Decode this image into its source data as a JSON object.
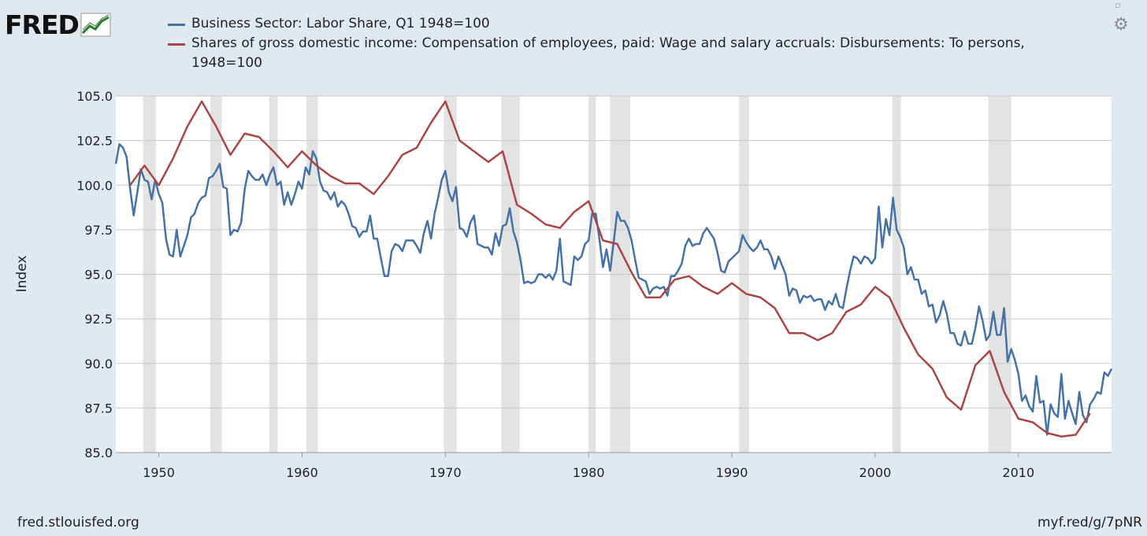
{
  "logo": {
    "text": "FRED",
    "icon": "line-chart-icon"
  },
  "colors": {
    "series1": "#4572a7",
    "series2": "#aa4643",
    "recession": "#e3e3e3",
    "grid": "#c8c8c8",
    "background": "#e1e9f0"
  },
  "footer": {
    "source": "fred.stlouisfed.org",
    "short_url": "myf.red/g/7pNR"
  },
  "chart_data": {
    "type": "line",
    "title": "",
    "ylabel": "Index",
    "xlabel": "",
    "xlim": [
      1947.0,
      2016.5
    ],
    "ylim": [
      85.0,
      105.0
    ],
    "xticks": [
      1950,
      1960,
      1970,
      1980,
      1990,
      2000,
      2010
    ],
    "yticks": [
      85.0,
      87.5,
      90.0,
      92.5,
      95.0,
      97.5,
      100.0,
      102.5,
      105.0
    ],
    "ytick_labels": [
      "85.0",
      "87.5",
      "90.0",
      "92.5",
      "95.0",
      "97.5",
      "100.0",
      "102.5",
      "105.0"
    ],
    "legend": "top",
    "recessions": [
      [
        1948.9,
        1949.8
      ],
      [
        1953.6,
        1954.4
      ],
      [
        1957.7,
        1958.3
      ],
      [
        1960.3,
        1961.1
      ],
      [
        1969.9,
        1970.8
      ],
      [
        1973.9,
        1975.2
      ],
      [
        1980.0,
        1980.5
      ],
      [
        1981.5,
        1982.9
      ],
      [
        1990.5,
        1991.2
      ],
      [
        2001.2,
        2001.8
      ],
      [
        2007.9,
        2009.5
      ]
    ],
    "series": [
      {
        "name": "Business Sector: Labor Share, Q1 1948=100",
        "x": [
          1947.0,
          1947.25,
          1947.5,
          1947.75,
          1948.0,
          1948.25,
          1948.5,
          1948.75,
          1949.0,
          1949.25,
          1949.5,
          1949.75,
          1950.0,
          1950.25,
          1950.5,
          1950.75,
          1951.0,
          1951.25,
          1951.5,
          1951.75,
          1952.0,
          1952.25,
          1952.5,
          1952.75,
          1953.0,
          1953.25,
          1953.5,
          1953.75,
          1954.0,
          1954.25,
          1954.5,
          1954.75,
          1955.0,
          1955.25,
          1955.5,
          1955.75,
          1956.0,
          1956.25,
          1956.5,
          1956.75,
          1957.0,
          1957.25,
          1957.5,
          1957.75,
          1958.0,
          1958.25,
          1958.5,
          1958.75,
          1959.0,
          1959.25,
          1959.5,
          1959.75,
          1960.0,
          1960.25,
          1960.5,
          1960.75,
          1961.0,
          1961.25,
          1961.5,
          1961.75,
          1962.0,
          1962.25,
          1962.5,
          1962.75,
          1963.0,
          1963.25,
          1963.5,
          1963.75,
          1964.0,
          1964.25,
          1964.5,
          1964.75,
          1965.0,
          1965.25,
          1965.5,
          1965.75,
          1966.0,
          1966.25,
          1966.5,
          1966.75,
          1967.0,
          1967.25,
          1967.5,
          1967.75,
          1968.0,
          1968.25,
          1968.5,
          1968.75,
          1969.0,
          1969.25,
          1969.5,
          1969.75,
          1970.0,
          1970.25,
          1970.5,
          1970.75,
          1971.0,
          1971.25,
          1971.5,
          1971.75,
          1972.0,
          1972.25,
          1972.5,
          1972.75,
          1973.0,
          1973.25,
          1973.5,
          1973.75,
          1974.0,
          1974.25,
          1974.5,
          1974.75,
          1975.0,
          1975.25,
          1975.5,
          1975.75,
          1976.0,
          1976.25,
          1976.5,
          1976.75,
          1977.0,
          1977.25,
          1977.5,
          1977.75,
          1978.0,
          1978.25,
          1978.5,
          1978.75,
          1979.0,
          1979.25,
          1979.5,
          1979.75,
          1980.0,
          1980.25,
          1980.5,
          1980.75,
          1981.0,
          1981.25,
          1981.5,
          1981.75,
          1982.0,
          1982.25,
          1982.5,
          1982.75,
          1983.0,
          1983.25,
          1983.5,
          1983.75,
          1984.0,
          1984.25,
          1984.5,
          1984.75,
          1985.0,
          1985.25,
          1985.5,
          1985.75,
          1986.0,
          1986.25,
          1986.5,
          1986.75,
          1987.0,
          1987.25,
          1987.5,
          1987.75,
          1988.0,
          1988.25,
          1988.5,
          1988.75,
          1989.0,
          1989.25,
          1989.5,
          1989.75,
          1990.0,
          1990.25,
          1990.5,
          1990.75,
          1991.0,
          1991.25,
          1991.5,
          1991.75,
          1992.0,
          1992.25,
          1992.5,
          1992.75,
          1993.0,
          1993.25,
          1993.5,
          1993.75,
          1994.0,
          1994.25,
          1994.5,
          1994.75,
          1995.0,
          1995.25,
          1995.5,
          1995.75,
          1996.0,
          1996.25,
          1996.5,
          1996.75,
          1997.0,
          1997.25,
          1997.5,
          1997.75,
          1998.0,
          1998.25,
          1998.5,
          1998.75,
          1999.0,
          1999.25,
          1999.5,
          1999.75,
          2000.0,
          2000.25,
          2000.5,
          2000.75,
          2001.0,
          2001.25,
          2001.5,
          2001.75,
          2002.0,
          2002.25,
          2002.5,
          2002.75,
          2003.0,
          2003.25,
          2003.5,
          2003.75,
          2004.0,
          2004.25,
          2004.5,
          2004.75,
          2005.0,
          2005.25,
          2005.5,
          2005.75,
          2006.0,
          2006.25,
          2006.5,
          2006.75,
          2007.0,
          2007.25,
          2007.5,
          2007.75,
          2008.0,
          2008.25,
          2008.5,
          2008.75,
          2009.0,
          2009.25,
          2009.5,
          2009.75,
          2010.0,
          2010.25,
          2010.5,
          2010.75,
          2011.0,
          2011.25,
          2011.5,
          2011.75,
          2012.0,
          2012.25,
          2012.5,
          2012.75,
          2013.0,
          2013.25,
          2013.5,
          2013.75,
          2014.0,
          2014.25,
          2014.5,
          2014.75,
          2015.0,
          2015.25,
          2015.5,
          2015.75,
          2016.0,
          2016.25,
          2016.5
        ],
        "values": [
          101.2,
          102.3,
          102.1,
          101.6,
          99.8,
          98.3,
          99.6,
          100.9,
          100.3,
          100.2,
          99.2,
          100.3,
          99.5,
          99.0,
          97.0,
          96.1,
          96.0,
          97.5,
          96.0,
          96.6,
          97.2,
          98.2,
          98.4,
          99.0,
          99.3,
          99.4,
          100.4,
          100.5,
          100.8,
          101.2,
          99.9,
          99.8,
          97.2,
          97.5,
          97.4,
          97.9,
          99.8,
          100.8,
          100.5,
          100.3,
          100.3,
          100.6,
          100.0,
          100.6,
          101.0,
          100.0,
          100.2,
          98.9,
          99.6,
          98.9,
          99.5,
          100.2,
          99.8,
          101.0,
          100.6,
          101.9,
          101.5,
          100.2,
          99.7,
          99.6,
          99.2,
          99.6,
          98.8,
          99.1,
          98.9,
          98.4,
          97.7,
          97.6,
          97.1,
          97.4,
          97.4,
          98.3,
          97.0,
          97.0,
          95.9,
          94.9,
          94.9,
          96.3,
          96.7,
          96.6,
          96.3,
          96.9,
          96.9,
          96.9,
          96.6,
          96.2,
          97.3,
          98.0,
          97.0,
          98.4,
          99.3,
          100.3,
          100.8,
          99.6,
          99.1,
          99.9,
          97.6,
          97.5,
          97.1,
          97.9,
          98.3,
          96.7,
          96.6,
          96.5,
          96.5,
          96.1,
          97.3,
          96.6,
          97.7,
          97.8,
          98.7,
          97.4,
          96.8,
          95.8,
          94.5,
          94.6,
          94.5,
          94.6,
          95.0,
          95.0,
          94.8,
          95.0,
          94.7,
          95.2,
          97.0,
          94.6,
          94.5,
          94.4,
          96.0,
          95.8,
          96.0,
          96.7,
          96.9,
          98.4,
          98.4,
          97.0,
          95.4,
          96.4,
          95.2,
          96.8,
          98.5,
          98.0,
          98.0,
          97.6,
          96.9,
          95.8,
          94.8,
          94.7,
          94.6,
          93.9,
          94.2,
          94.3,
          94.2,
          94.3,
          93.8,
          94.9,
          94.9,
          95.2,
          95.6,
          96.6,
          97.0,
          96.6,
          96.7,
          96.7,
          97.3,
          97.6,
          97.3,
          97.0,
          96.2,
          95.2,
          95.1,
          95.7,
          95.9,
          96.1,
          96.3,
          97.2,
          96.8,
          96.5,
          96.3,
          96.5,
          96.9,
          96.4,
          96.4,
          96.0,
          95.3,
          96.0,
          95.5,
          95.0,
          93.8,
          94.2,
          94.1,
          93.4,
          93.8,
          93.7,
          93.8,
          93.5,
          93.6,
          93.6,
          93.0,
          93.5,
          93.3,
          93.9,
          93.2,
          93.1,
          94.2,
          95.2,
          96.0,
          95.9,
          95.6,
          96.0,
          95.9,
          95.6,
          95.9,
          98.8,
          96.5,
          98.1,
          97.2,
          99.3,
          97.5,
          97.1,
          96.5,
          95.0,
          95.4,
          94.7,
          94.7,
          93.9,
          94.1,
          93.2,
          93.3,
          92.3,
          92.7,
          93.5,
          92.8,
          91.7,
          91.7,
          91.1,
          91.0,
          91.8,
          91.1,
          91.1,
          92.0,
          93.2,
          92.4,
          91.3,
          91.6,
          92.9,
          91.6,
          91.6,
          93.1,
          90.1,
          90.8,
          90.2,
          89.4,
          87.9,
          88.2,
          87.6,
          87.3,
          89.3,
          87.8,
          87.9,
          86.0,
          87.7,
          87.2,
          87.0,
          89.4,
          86.9,
          87.9,
          87.2,
          86.6,
          88.4,
          87.1,
          86.7,
          87.7,
          88.0,
          88.4,
          88.3,
          89.5,
          89.3,
          89.7
        ]
      },
      {
        "name": "Shares of gross domestic income: Compensation of employees, paid: Wage and salary accruals: Disbursements: To persons, 1948=100",
        "x": [
          1948,
          1949,
          1950,
          1951,
          1952,
          1953,
          1954,
          1955,
          1956,
          1957,
          1958,
          1959,
          1960,
          1961,
          1962,
          1963,
          1964,
          1965,
          1966,
          1967,
          1968,
          1969,
          1970,
          1971,
          1972,
          1973,
          1974,
          1975,
          1976,
          1977,
          1978,
          1979,
          1980,
          1981,
          1982,
          1983,
          1984,
          1985,
          1986,
          1987,
          1988,
          1989,
          1990,
          1991,
          1992,
          1993,
          1994,
          1995,
          1996,
          1997,
          1998,
          1999,
          2000,
          2001,
          2002,
          2003,
          2004,
          2005,
          2006,
          2007,
          2008,
          2009,
          2010,
          2011,
          2012,
          2013,
          2014,
          2015
        ],
        "values": [
          100.0,
          101.1,
          100.0,
          101.5,
          103.3,
          104.7,
          103.3,
          101.7,
          102.9,
          102.7,
          101.9,
          101.0,
          101.9,
          101.1,
          100.5,
          100.1,
          100.1,
          99.5,
          100.5,
          101.7,
          102.1,
          103.5,
          104.7,
          102.5,
          101.9,
          101.3,
          101.9,
          98.9,
          98.4,
          97.8,
          97.6,
          98.5,
          99.1,
          96.9,
          96.7,
          95.1,
          93.7,
          93.7,
          94.7,
          94.9,
          94.3,
          93.9,
          94.5,
          93.9,
          93.7,
          93.1,
          91.7,
          91.7,
          91.3,
          91.7,
          92.9,
          93.3,
          94.3,
          93.7,
          92.0,
          90.5,
          89.7,
          88.1,
          87.4,
          89.9,
          90.7,
          88.4,
          86.9,
          86.7,
          86.1,
          85.9,
          86.0,
          87.2
        ]
      }
    ]
  }
}
